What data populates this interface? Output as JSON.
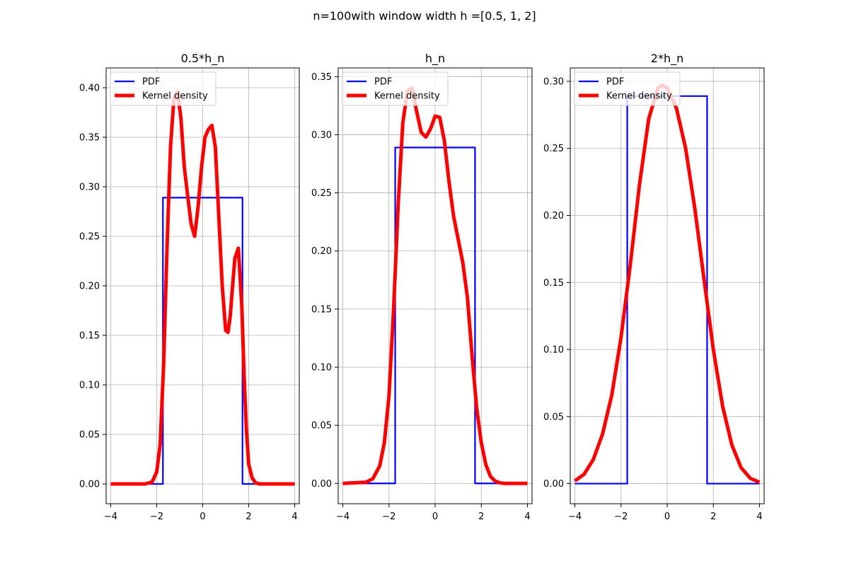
{
  "figure": {
    "suptitle": "n=100with window width h =[0.5, 1, 2]"
  },
  "colors": {
    "pdf": "#0000ff",
    "kde": "#ff0000",
    "grid": "#b0b0b0",
    "axes": "#000000"
  },
  "chart_data": [
    {
      "type": "line",
      "title": "0.5*h_n",
      "xlim": [
        -4.2,
        4.2
      ],
      "ylim": [
        -0.02,
        0.42
      ],
      "xticks": [
        -4,
        -2,
        0,
        2,
        4
      ],
      "xtick_labels": [
        "−4",
        "−2",
        "0",
        "2",
        "4"
      ],
      "yticks": [
        0.0,
        0.05,
        0.1,
        0.15,
        0.2,
        0.25,
        0.3,
        0.35,
        0.4
      ],
      "ytick_labels": [
        "0.00",
        "0.05",
        "0.10",
        "0.15",
        "0.20",
        "0.25",
        "0.30",
        "0.35",
        "0.40"
      ],
      "grid": true,
      "legend_position": "top-left",
      "series": [
        {
          "name": "PDF",
          "color": "#0000ff",
          "x": [
            -4,
            -1.73,
            -1.73,
            1.73,
            1.73,
            4
          ],
          "y": [
            0,
            0,
            0.289,
            0.289,
            0,
            0
          ]
        },
        {
          "name": "Kernel density",
          "color": "#ff0000",
          "x": [
            -4,
            -2.5,
            -2.2,
            -2.0,
            -1.85,
            -1.7,
            -1.55,
            -1.4,
            -1.25,
            -1.1,
            -0.95,
            -0.8,
            -0.65,
            -0.5,
            -0.35,
            -0.2,
            -0.05,
            0.1,
            0.25,
            0.4,
            0.55,
            0.7,
            0.85,
            1.0,
            1.1,
            1.2,
            1.3,
            1.4,
            1.55,
            1.7,
            1.8,
            1.9,
            2.0,
            2.15,
            2.3,
            2.5,
            4
          ],
          "y": [
            0,
            0,
            0.002,
            0.012,
            0.04,
            0.12,
            0.24,
            0.34,
            0.39,
            0.396,
            0.37,
            0.32,
            0.29,
            0.262,
            0.25,
            0.28,
            0.32,
            0.35,
            0.358,
            0.362,
            0.34,
            0.27,
            0.2,
            0.155,
            0.153,
            0.17,
            0.2,
            0.228,
            0.238,
            0.18,
            0.11,
            0.055,
            0.02,
            0.006,
            0.001,
            0,
            0
          ]
        }
      ]
    },
    {
      "type": "line",
      "title": "h_n",
      "xlim": [
        -4.2,
        4.2
      ],
      "ylim": [
        -0.0175,
        0.3575
      ],
      "xticks": [
        -4,
        -2,
        0,
        2,
        4
      ],
      "xtick_labels": [
        "−4",
        "−2",
        "0",
        "2",
        "4"
      ],
      "yticks": [
        0.0,
        0.05,
        0.1,
        0.15,
        0.2,
        0.25,
        0.3,
        0.35
      ],
      "ytick_labels": [
        "0.00",
        "0.05",
        "0.10",
        "0.15",
        "0.20",
        "0.25",
        "0.30",
        "0.35"
      ],
      "grid": true,
      "legend_position": "top-left",
      "series": [
        {
          "name": "PDF",
          "color": "#0000ff",
          "x": [
            -4,
            -1.73,
            -1.73,
            1.73,
            1.73,
            4
          ],
          "y": [
            0,
            0,
            0.289,
            0.289,
            0,
            0
          ]
        },
        {
          "name": "Kernel density",
          "color": "#ff0000",
          "x": [
            -4,
            -3.0,
            -2.7,
            -2.4,
            -2.2,
            -2.0,
            -1.8,
            -1.6,
            -1.4,
            -1.2,
            -1.0,
            -0.8,
            -0.6,
            -0.4,
            -0.2,
            0.0,
            0.2,
            0.4,
            0.6,
            0.8,
            1.0,
            1.2,
            1.4,
            1.6,
            1.8,
            2.0,
            2.2,
            2.4,
            2.6,
            2.8,
            3.0,
            3.3,
            4
          ],
          "y": [
            0,
            0.001,
            0.004,
            0.015,
            0.035,
            0.075,
            0.15,
            0.24,
            0.31,
            0.338,
            0.34,
            0.32,
            0.302,
            0.298,
            0.305,
            0.316,
            0.315,
            0.295,
            0.26,
            0.23,
            0.21,
            0.19,
            0.16,
            0.11,
            0.065,
            0.035,
            0.016,
            0.006,
            0.002,
            0.0005,
            0,
            0,
            0
          ]
        }
      ]
    },
    {
      "type": "line",
      "title": "2*h_n",
      "xlim": [
        -4.2,
        4.2
      ],
      "ylim": [
        -0.015,
        0.31
      ],
      "xticks": [
        -4,
        -2,
        0,
        2,
        4
      ],
      "xtick_labels": [
        "−4",
        "−2",
        "0",
        "2",
        "4"
      ],
      "yticks": [
        0.0,
        0.05,
        0.1,
        0.15,
        0.2,
        0.25,
        0.3
      ],
      "ytick_labels": [
        "0.00",
        "0.05",
        "0.10",
        "0.15",
        "0.20",
        "0.25",
        "0.30"
      ],
      "grid": true,
      "legend_position": "top-left",
      "series": [
        {
          "name": "PDF",
          "color": "#0000ff",
          "x": [
            -4,
            -1.73,
            -1.73,
            1.73,
            1.73,
            4
          ],
          "y": [
            0,
            0,
            0.289,
            0.289,
            0,
            0
          ]
        },
        {
          "name": "Kernel density",
          "color": "#ff0000",
          "x": [
            -4,
            -3.6,
            -3.2,
            -2.8,
            -2.4,
            -2.0,
            -1.6,
            -1.2,
            -0.8,
            -0.4,
            -0.2,
            0.0,
            0.4,
            0.8,
            1.2,
            1.6,
            2.0,
            2.4,
            2.8,
            3.2,
            3.6,
            4
          ],
          "y": [
            0.002,
            0.007,
            0.018,
            0.037,
            0.066,
            0.109,
            0.163,
            0.223,
            0.272,
            0.295,
            0.297,
            0.295,
            0.28,
            0.25,
            0.205,
            0.152,
            0.1,
            0.058,
            0.029,
            0.012,
            0.004,
            0.001
          ]
        }
      ]
    }
  ]
}
